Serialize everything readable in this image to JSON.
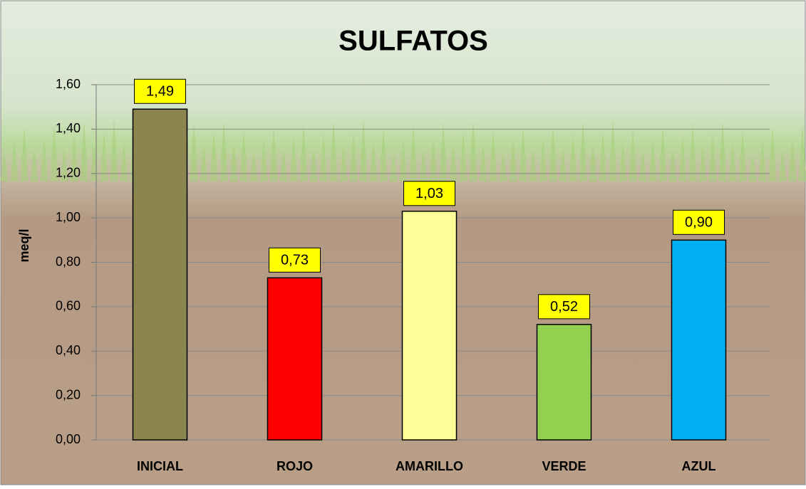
{
  "chart_data": {
    "type": "bar",
    "title": "SULFATOS",
    "y_label": "meq/l",
    "categories": [
      "INICIAL",
      "ROJO",
      "AMARILLO",
      "VERDE",
      "AZUL"
    ],
    "values": [
      1.49,
      0.73,
      1.03,
      0.52,
      0.9
    ],
    "value_labels": [
      "1,49",
      "0,73",
      "1,03",
      "0,52",
      "0,90"
    ],
    "colors": [
      "#8b8650",
      "#ff0000",
      "#ffff99",
      "#92d050",
      "#00b0f0"
    ],
    "ylim": [
      0,
      1.6
    ],
    "yticks": [
      {
        "value": 0,
        "label": "0,00"
      },
      {
        "value": 0.2,
        "label": "0,20"
      },
      {
        "value": 0.4,
        "label": "0,40"
      },
      {
        "value": 0.6,
        "label": "0,60"
      },
      {
        "value": 0.8,
        "label": "0,80"
      },
      {
        "value": 1.0,
        "label": "1,00"
      },
      {
        "value": 1.2,
        "label": "1,20"
      },
      {
        "value": 1.4,
        "label": "1,40"
      },
      {
        "value": 1.6,
        "label": "1,60"
      }
    ],
    "grid": true
  }
}
